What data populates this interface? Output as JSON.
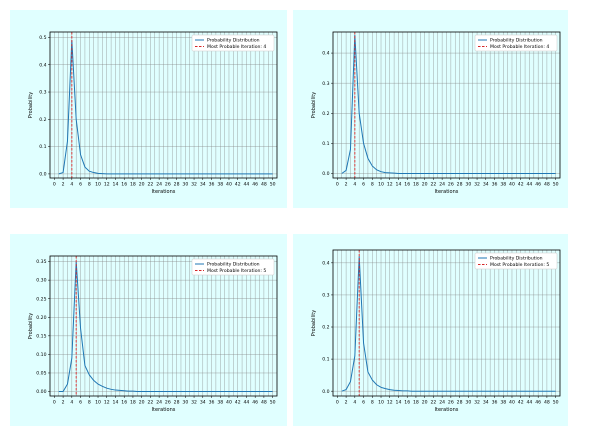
{
  "colors": {
    "panel_background": "#e0ffff",
    "plot_background": "#e0ffff",
    "grid": "#808080",
    "distribution_line": "#1f77b4",
    "most_probable_line": "#d62728"
  },
  "chart_data": [
    {
      "type": "line",
      "xlabel": "Iterations",
      "ylabel": "Probability",
      "xlim": [
        -1,
        51
      ],
      "ylim": [
        -0.015,
        0.52
      ],
      "xticks": [
        "0",
        "2",
        "4",
        "6",
        "8",
        "10",
        "12",
        "14",
        "16",
        "18",
        "20",
        "22",
        "24",
        "26",
        "28",
        "30",
        "32",
        "34",
        "36",
        "38",
        "40",
        "42",
        "44",
        "46",
        "48",
        "50"
      ],
      "yticks": [
        "0.0",
        "0.1",
        "0.2",
        "0.3",
        "0.4",
        "0.5"
      ],
      "grid": true,
      "legend_position": "top-right",
      "series": [
        {
          "name": "Probability Distribution",
          "x": [
            1,
            2,
            3,
            4,
            5,
            6,
            7,
            8,
            9,
            10,
            11,
            12,
            13,
            14,
            15,
            16,
            17,
            18,
            19,
            20,
            21,
            22,
            23,
            24,
            25,
            26,
            27,
            28,
            29,
            30,
            31,
            32,
            33,
            34,
            35,
            36,
            37,
            38,
            39,
            40,
            41,
            42,
            43,
            44,
            45,
            46,
            47,
            48,
            49,
            50
          ],
          "values": [
            0.0,
            0.005,
            0.12,
            0.49,
            0.2,
            0.07,
            0.025,
            0.01,
            0.005,
            0.002,
            0.001,
            0,
            0,
            0,
            0,
            0,
            0,
            0,
            0,
            0,
            0,
            0,
            0,
            0,
            0,
            0,
            0,
            0,
            0,
            0,
            0,
            0,
            0,
            0,
            0,
            0,
            0,
            0,
            0,
            0,
            0,
            0,
            0,
            0,
            0,
            0,
            0,
            0,
            0,
            0
          ]
        },
        {
          "name": "Most Probable Iteration: 4",
          "x_value": 4,
          "style": "dashed-vertical"
        }
      ]
    },
    {
      "type": "line",
      "xlabel": "Iterations",
      "ylabel": "Probability",
      "xlim": [
        -1,
        51
      ],
      "ylim": [
        -0.015,
        0.47
      ],
      "xticks": [
        "0",
        "2",
        "4",
        "6",
        "8",
        "10",
        "12",
        "14",
        "16",
        "18",
        "20",
        "22",
        "24",
        "26",
        "28",
        "30",
        "32",
        "34",
        "36",
        "38",
        "40",
        "42",
        "44",
        "46",
        "48",
        "50"
      ],
      "yticks": [
        "0.0",
        "0.1",
        "0.2",
        "0.3",
        "0.4"
      ],
      "grid": true,
      "legend_position": "top-right",
      "series": [
        {
          "name": "Probability Distribution",
          "x": [
            1,
            2,
            3,
            4,
            5,
            6,
            7,
            8,
            9,
            10,
            11,
            12,
            13,
            14,
            15,
            16,
            17,
            18,
            19,
            20,
            21,
            22,
            23,
            24,
            25,
            26,
            27,
            28,
            29,
            30,
            31,
            32,
            33,
            34,
            35,
            36,
            37,
            38,
            39,
            40,
            41,
            42,
            43,
            44,
            45,
            46,
            47,
            48,
            49,
            50
          ],
          "values": [
            0.0,
            0.01,
            0.08,
            0.46,
            0.2,
            0.1,
            0.05,
            0.025,
            0.012,
            0.006,
            0.003,
            0.002,
            0.001,
            0,
            0,
            0,
            0,
            0,
            0,
            0,
            0,
            0,
            0,
            0,
            0,
            0,
            0,
            0,
            0,
            0,
            0,
            0,
            0,
            0,
            0,
            0,
            0,
            0,
            0,
            0,
            0,
            0,
            0,
            0,
            0,
            0,
            0,
            0,
            0,
            0
          ]
        },
        {
          "name": "Most Probable Iteration: 4",
          "x_value": 4,
          "style": "dashed-vertical"
        }
      ]
    },
    {
      "type": "line",
      "xlabel": "Iterations",
      "ylabel": "Probability",
      "xlim": [
        -1,
        51
      ],
      "ylim": [
        -0.012,
        0.365
      ],
      "xticks": [
        "0",
        "2",
        "4",
        "6",
        "8",
        "10",
        "12",
        "14",
        "16",
        "18",
        "20",
        "22",
        "24",
        "26",
        "28",
        "30",
        "32",
        "34",
        "36",
        "38",
        "40",
        "42",
        "44",
        "46",
        "48",
        "50"
      ],
      "yticks": [
        "0.00",
        "0.05",
        "0.10",
        "0.15",
        "0.20",
        "0.25",
        "0.30",
        "0.35"
      ],
      "grid": true,
      "legend_position": "top-right",
      "series": [
        {
          "name": "Probability Distribution",
          "x": [
            1,
            2,
            3,
            4,
            5,
            6,
            7,
            8,
            9,
            10,
            11,
            12,
            13,
            14,
            15,
            16,
            17,
            18,
            19,
            20,
            21,
            22,
            23,
            24,
            25,
            26,
            27,
            28,
            29,
            30,
            31,
            32,
            33,
            34,
            35,
            36,
            37,
            38,
            39,
            40,
            41,
            42,
            43,
            44,
            45,
            46,
            47,
            48,
            49,
            50
          ],
          "values": [
            0.0,
            0.0,
            0.02,
            0.09,
            0.35,
            0.17,
            0.07,
            0.045,
            0.03,
            0.02,
            0.014,
            0.009,
            0.006,
            0.004,
            0.003,
            0.002,
            0.001,
            0.001,
            0,
            0,
            0,
            0,
            0,
            0,
            0,
            0,
            0,
            0,
            0,
            0,
            0,
            0,
            0,
            0,
            0,
            0,
            0,
            0,
            0,
            0,
            0,
            0,
            0,
            0,
            0,
            0,
            0,
            0,
            0,
            0
          ]
        },
        {
          "name": "Most Probable Iteration: 5",
          "x_value": 5,
          "style": "dashed-vertical"
        }
      ]
    },
    {
      "type": "line",
      "xlabel": "Iterations",
      "ylabel": "Probability",
      "xlim": [
        -1,
        51
      ],
      "ylim": [
        -0.015,
        0.44
      ],
      "xticks": [
        "0",
        "2",
        "4",
        "6",
        "8",
        "10",
        "12",
        "14",
        "16",
        "18",
        "20",
        "22",
        "24",
        "26",
        "28",
        "30",
        "32",
        "34",
        "36",
        "38",
        "40",
        "42",
        "44",
        "46",
        "48",
        "50"
      ],
      "yticks": [
        "0.0",
        "0.1",
        "0.2",
        "0.3",
        "0.4"
      ],
      "grid": true,
      "legend_position": "top-right",
      "series": [
        {
          "name": "Probability Distribution",
          "x": [
            1,
            2,
            3,
            4,
            5,
            6,
            7,
            8,
            9,
            10,
            11,
            12,
            13,
            14,
            15,
            16,
            17,
            18,
            19,
            20,
            21,
            22,
            23,
            24,
            25,
            26,
            27,
            28,
            29,
            30,
            31,
            32,
            33,
            34,
            35,
            36,
            37,
            38,
            39,
            40,
            41,
            42,
            43,
            44,
            45,
            46,
            47,
            48,
            49,
            50
          ],
          "values": [
            0.0,
            0.005,
            0.03,
            0.11,
            0.42,
            0.15,
            0.06,
            0.035,
            0.02,
            0.012,
            0.008,
            0.005,
            0.003,
            0.002,
            0.001,
            0.001,
            0,
            0,
            0,
            0,
            0,
            0,
            0,
            0,
            0,
            0,
            0,
            0,
            0,
            0,
            0,
            0,
            0,
            0,
            0,
            0,
            0,
            0,
            0,
            0,
            0,
            0,
            0,
            0,
            0,
            0,
            0,
            0,
            0,
            0
          ]
        },
        {
          "name": "Most Probable Iteration: 5",
          "x_value": 5,
          "style": "dashed-vertical"
        }
      ]
    }
  ]
}
